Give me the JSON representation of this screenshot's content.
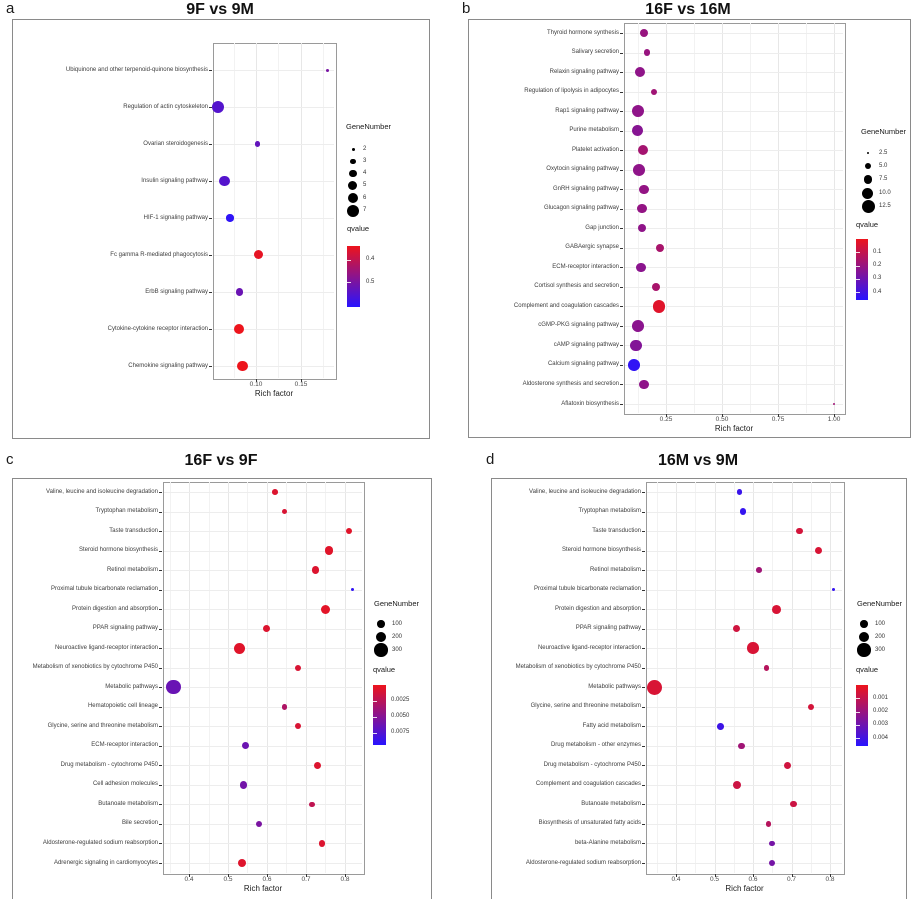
{
  "chart_data": [
    {
      "id": "a",
      "type": "scatter",
      "panel_letter": "a",
      "title": "9F vs 9M",
      "xlabel": "Rich factor",
      "xtick_values": [
        0.1,
        0.15
      ],
      "xtick_labels": [
        "0.10",
        "0.15"
      ],
      "xlim": [
        0.0522,
        0.1878
      ],
      "legend": {
        "size_title": "GeneNumber",
        "size_values": [
          2,
          3,
          4,
          5,
          6,
          7
        ],
        "size_labels": [
          "2",
          "3",
          "4",
          "5",
          "6",
          "7"
        ],
        "q_title": "qvalue",
        "q_tick_values": [
          0.4,
          0.5
        ],
        "q_tick_labels": [
          "0.4",
          "0.5"
        ],
        "q_range": [
          0.34,
          0.61
        ],
        "gradient_top": "#ed141c",
        "gradient_bottom": "#2814ff"
      },
      "size_domain": [
        2,
        7
      ],
      "points": [
        {
          "pathway": "Ubiquinone and other terpenoid-quinone biosynthesis",
          "rich_factor": 0.18,
          "gene_number": 2,
          "qvalue": 0.5
        },
        {
          "pathway": "Regulation of actin cytoskeleton",
          "rich_factor": 0.058,
          "gene_number": 7,
          "qvalue": 0.55
        },
        {
          "pathway": "Ovarian steroidogenesis",
          "rich_factor": 0.102,
          "gene_number": 3,
          "qvalue": 0.53
        },
        {
          "pathway": "Insulin signaling pathway",
          "rich_factor": 0.065,
          "gene_number": 6,
          "qvalue": 0.55
        },
        {
          "pathway": "HIF-1 signaling pathway",
          "rich_factor": 0.071,
          "gene_number": 4,
          "qvalue": 0.6
        },
        {
          "pathway": "Fc gamma R-mediated phagocytosis",
          "rich_factor": 0.103,
          "gene_number": 5,
          "qvalue": 0.35
        },
        {
          "pathway": "ErbB signaling pathway",
          "rich_factor": 0.082,
          "gene_number": 4,
          "qvalue": 0.52
        },
        {
          "pathway": "Cytokine-cytokine receptor interaction",
          "rich_factor": 0.081,
          "gene_number": 6,
          "qvalue": 0.34
        },
        {
          "pathway": "Chemokine signaling pathway",
          "rich_factor": 0.085,
          "gene_number": 6,
          "qvalue": 0.34
        }
      ]
    },
    {
      "id": "b",
      "type": "scatter",
      "panel_letter": "b",
      "title": "16F vs 16M",
      "xlabel": "Rich factor",
      "xtick_values": [
        0.25,
        0.5,
        0.75,
        1.0
      ],
      "xtick_labels": [
        "0.25",
        "0.50",
        "0.75",
        "1.00"
      ],
      "xlim": [
        0.0625,
        1.0445
      ],
      "legend": {
        "size_title": "GeneNumber",
        "size_values": [
          2.5,
          5.0,
          7.5,
          10.0,
          12.5
        ],
        "size_labels": [
          "2.5",
          "5.0",
          "7.5",
          "10.0",
          "12.5"
        ],
        "q_title": "qvalue",
        "q_tick_values": [
          0.1,
          0.2,
          0.3,
          0.4
        ],
        "q_tick_labels": [
          "0.1",
          "0.2",
          "0.3",
          "0.4"
        ],
        "q_range": [
          0.0,
          0.46
        ],
        "gradient_top": "#ed141c",
        "gradient_bottom": "#2814ff"
      },
      "size_domain": [
        2.5,
        12.5
      ],
      "points": [
        {
          "pathway": "Thyroid hormone synthesis",
          "rich_factor": 0.152,
          "gene_number": 7,
          "qvalue": 0.2
        },
        {
          "pathway": "Salivary secretion",
          "rich_factor": 0.165,
          "gene_number": 5,
          "qvalue": 0.2
        },
        {
          "pathway": "Relaxin signaling pathway",
          "rich_factor": 0.134,
          "gene_number": 9,
          "qvalue": 0.22
        },
        {
          "pathway": "Regulation of lipolysis in adipocytes",
          "rich_factor": 0.196,
          "gene_number": 5,
          "qvalue": 0.18
        },
        {
          "pathway": "Rap1 signaling pathway",
          "rich_factor": 0.125,
          "gene_number": 12,
          "qvalue": 0.22
        },
        {
          "pathway": "Purine metabolism",
          "rich_factor": 0.125,
          "gene_number": 10,
          "qvalue": 0.24
        },
        {
          "pathway": "Platelet activation",
          "rich_factor": 0.147,
          "gene_number": 9,
          "qvalue": 0.17
        },
        {
          "pathway": "Oxytocin signaling pathway",
          "rich_factor": 0.129,
          "gene_number": 11,
          "qvalue": 0.22
        },
        {
          "pathway": "GnRH signaling pathway",
          "rich_factor": 0.152,
          "gene_number": 8,
          "qvalue": 0.21
        },
        {
          "pathway": "Glucagon signaling pathway",
          "rich_factor": 0.143,
          "gene_number": 8,
          "qvalue": 0.21
        },
        {
          "pathway": "Gap junction",
          "rich_factor": 0.143,
          "gene_number": 7,
          "qvalue": 0.22
        },
        {
          "pathway": "GABAergic synapse",
          "rich_factor": 0.223,
          "gene_number": 7,
          "qvalue": 0.16
        },
        {
          "pathway": "ECM-receptor interaction",
          "rich_factor": 0.138,
          "gene_number": 8,
          "qvalue": 0.23
        },
        {
          "pathway": "Cortisol synthesis and secretion",
          "rich_factor": 0.205,
          "gene_number": 7,
          "qvalue": 0.16
        },
        {
          "pathway": "Complement and coagulation cascades",
          "rich_factor": 0.219,
          "gene_number": 12,
          "qvalue": 0.03
        },
        {
          "pathway": "cGMP-PKG signaling pathway",
          "rich_factor": 0.125,
          "gene_number": 11,
          "qvalue": 0.23
        },
        {
          "pathway": "cAMP signaling pathway",
          "rich_factor": 0.116,
          "gene_number": 11,
          "qvalue": 0.25
        },
        {
          "pathway": "Calcium signaling pathway",
          "rich_factor": 0.107,
          "gene_number": 11,
          "qvalue": 0.44
        },
        {
          "pathway": "Aldosterone synthesis and secretion",
          "rich_factor": 0.152,
          "gene_number": 8,
          "qvalue": 0.22
        },
        {
          "pathway": "Aflatoxin biosynthesis",
          "rich_factor": 1.0,
          "gene_number": 2.5,
          "qvalue": 0.18
        }
      ]
    },
    {
      "id": "c",
      "type": "scatter",
      "panel_letter": "c",
      "title": "16F vs 9F",
      "xlabel": "Rich factor",
      "xtick_values": [
        0.4,
        0.5,
        0.6,
        0.7,
        0.8
      ],
      "xtick_labels": [
        "0.4",
        "0.5",
        "0.6",
        "0.7",
        "0.8"
      ],
      "xlim": [
        0.3333,
        0.8462
      ],
      "legend": {
        "size_title": "GeneNumber",
        "size_values": [
          100,
          200,
          300
        ],
        "size_labels": [
          "100",
          "200",
          "300"
        ],
        "q_title": "qvalue",
        "q_tick_values": [
          0.0025,
          0.005,
          0.0075
        ],
        "q_tick_labels": [
          "0.0025",
          "0.0050",
          "0.0075"
        ],
        "q_range": [
          0.0,
          0.0094
        ],
        "gradient_top": "#ed141c",
        "gradient_bottom": "#2814ff"
      },
      "size_domain": [
        20,
        380
      ],
      "points": [
        {
          "pathway": "Valine, leucine and isoleucine degradation",
          "rich_factor": 0.62,
          "gene_number": 60,
          "qvalue": 0.0008
        },
        {
          "pathway": "Tryptophan metabolism",
          "rich_factor": 0.645,
          "gene_number": 60,
          "qvalue": 0.001
        },
        {
          "pathway": "Taste transduction",
          "rich_factor": 0.81,
          "gene_number": 80,
          "qvalue": 0.0006
        },
        {
          "pathway": "Steroid hormone biosynthesis",
          "rich_factor": 0.76,
          "gene_number": 120,
          "qvalue": 0.0006
        },
        {
          "pathway": "Retinol metabolism",
          "rich_factor": 0.725,
          "gene_number": 100,
          "qvalue": 0.0008
        },
        {
          "pathway": "Proximal tubule bicarbonate reclamation",
          "rich_factor": 0.82,
          "gene_number": 20,
          "qvalue": 0.009
        },
        {
          "pathway": "Protein digestion and absorption",
          "rich_factor": 0.75,
          "gene_number": 150,
          "qvalue": 0.0005
        },
        {
          "pathway": "PPAR signaling pathway",
          "rich_factor": 0.6,
          "gene_number": 90,
          "qvalue": 0.0008
        },
        {
          "pathway": "Neuroactive ligand-receptor interaction",
          "rich_factor": 0.53,
          "gene_number": 220,
          "qvalue": 0.0006
        },
        {
          "pathway": "Metabolism of xenobiotics by cytochrome P450",
          "rich_factor": 0.68,
          "gene_number": 70,
          "qvalue": 0.001
        },
        {
          "pathway": "Metabolic pathways",
          "rich_factor": 0.36,
          "gene_number": 350,
          "qvalue": 0.0063
        },
        {
          "pathway": "Hematopoietic cell lineage",
          "rich_factor": 0.645,
          "gene_number": 60,
          "qvalue": 0.003
        },
        {
          "pathway": "Glycine, serine and threonine metabolism",
          "rich_factor": 0.68,
          "gene_number": 70,
          "qvalue": 0.001
        },
        {
          "pathway": "ECM-receptor interaction",
          "rich_factor": 0.545,
          "gene_number": 90,
          "qvalue": 0.0062
        },
        {
          "pathway": "Drug metabolism - cytochrome P450",
          "rich_factor": 0.73,
          "gene_number": 90,
          "qvalue": 0.0008
        },
        {
          "pathway": "Cell adhesion molecules",
          "rich_factor": 0.54,
          "gene_number": 110,
          "qvalue": 0.0058
        },
        {
          "pathway": "Butanoate metabolism",
          "rich_factor": 0.715,
          "gene_number": 60,
          "qvalue": 0.0022
        },
        {
          "pathway": "Bile secretion",
          "rich_factor": 0.58,
          "gene_number": 80,
          "qvalue": 0.0055
        },
        {
          "pathway": "Aldosterone-regulated sodium reabsorption",
          "rich_factor": 0.74,
          "gene_number": 70,
          "qvalue": 0.0008
        },
        {
          "pathway": "Adrenergic signaling in cardiomyocytes",
          "rich_factor": 0.535,
          "gene_number": 120,
          "qvalue": 0.0007
        }
      ]
    },
    {
      "id": "d",
      "type": "scatter",
      "panel_letter": "d",
      "title": "16M vs 9M",
      "xlabel": "Rich factor",
      "xtick_values": [
        0.4,
        0.5,
        0.6,
        0.7,
        0.8
      ],
      "xtick_labels": [
        "0.4",
        "0.5",
        "0.6",
        "0.7",
        "0.8"
      ],
      "xlim": [
        0.322,
        0.8337
      ],
      "legend": {
        "size_title": "GeneNumber",
        "size_values": [
          100,
          200,
          300
        ],
        "size_labels": [
          "100",
          "200",
          "300"
        ],
        "q_title": "qvalue",
        "q_tick_values": [
          0.001,
          0.002,
          0.003,
          0.004
        ],
        "q_tick_labels": [
          "0.001",
          "0.002",
          "0.003",
          "0.004"
        ],
        "q_range": [
          0.0,
          0.0046
        ],
        "gradient_top": "#ed141c",
        "gradient_bottom": "#2814ff"
      },
      "size_domain": [
        20,
        380
      ],
      "points": [
        {
          "pathway": "Valine, leucine and isoleucine degradation",
          "rich_factor": 0.565,
          "gene_number": 60,
          "qvalue": 0.0042
        },
        {
          "pathway": "Tryptophan metabolism",
          "rich_factor": 0.575,
          "gene_number": 70,
          "qvalue": 0.0043
        },
        {
          "pathway": "Taste transduction",
          "rich_factor": 0.72,
          "gene_number": 80,
          "qvalue": 0.0006
        },
        {
          "pathway": "Steroid hormone biosynthesis",
          "rich_factor": 0.77,
          "gene_number": 110,
          "qvalue": 0.0005
        },
        {
          "pathway": "Retinol metabolism",
          "rich_factor": 0.615,
          "gene_number": 60,
          "qvalue": 0.0018
        },
        {
          "pathway": "Proximal tubule bicarbonate reclamation",
          "rich_factor": 0.81,
          "gene_number": 20,
          "qvalue": 0.0043
        },
        {
          "pathway": "Protein digestion and absorption",
          "rich_factor": 0.66,
          "gene_number": 140,
          "qvalue": 0.0005
        },
        {
          "pathway": "PPAR signaling pathway",
          "rich_factor": 0.558,
          "gene_number": 90,
          "qvalue": 0.0007
        },
        {
          "pathway": "Neuroactive ligand-receptor interaction",
          "rich_factor": 0.6,
          "gene_number": 230,
          "qvalue": 0.0005
        },
        {
          "pathway": "Metabolism of xenobiotics by cytochrome P450",
          "rich_factor": 0.635,
          "gene_number": 60,
          "qvalue": 0.0013
        },
        {
          "pathway": "Metabolic pathways",
          "rich_factor": 0.345,
          "gene_number": 380,
          "qvalue": 0.0005
        },
        {
          "pathway": "Glycine, serine and threonine metabolism",
          "rich_factor": 0.75,
          "gene_number": 70,
          "qvalue": 0.0006
        },
        {
          "pathway": "Fatty acid metabolism",
          "rich_factor": 0.515,
          "gene_number": 80,
          "qvalue": 0.0041
        },
        {
          "pathway": "Drug metabolism - other enzymes",
          "rich_factor": 0.57,
          "gene_number": 70,
          "qvalue": 0.0018
        },
        {
          "pathway": "Drug metabolism - cytochrome P450",
          "rich_factor": 0.69,
          "gene_number": 90,
          "qvalue": 0.0007
        },
        {
          "pathway": "Complement and coagulation cascades",
          "rich_factor": 0.558,
          "gene_number": 130,
          "qvalue": 0.0008
        },
        {
          "pathway": "Butanoate metabolism",
          "rich_factor": 0.705,
          "gene_number": 70,
          "qvalue": 0.0008
        },
        {
          "pathway": "Biosynthesis of unsaturated fatty acids",
          "rich_factor": 0.64,
          "gene_number": 60,
          "qvalue": 0.0013
        },
        {
          "pathway": "beta-Alanine metabolism",
          "rich_factor": 0.65,
          "gene_number": 60,
          "qvalue": 0.0028
        },
        {
          "pathway": "Aldosterone-regulated sodium reabsorption",
          "rich_factor": 0.65,
          "gene_number": 70,
          "qvalue": 0.0028
        }
      ]
    }
  ]
}
